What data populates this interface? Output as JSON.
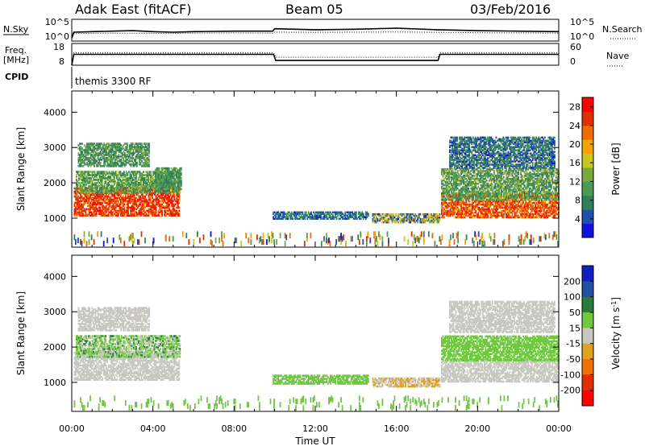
{
  "header": {
    "station": "Adak East (fitACF)",
    "beam": "Beam 05",
    "date": "03/Feb/2016"
  },
  "top_panels": {
    "nsky_label": "N.Sky",
    "nsky_ticks": [
      "10^5",
      "10^0"
    ],
    "nsearch_label": "N.Search",
    "freq_label_1": "Freq.",
    "freq_label_2": "[MHz]",
    "freq_ticks": [
      "18",
      "8"
    ],
    "nave_label": "Nave",
    "nave_ticks": [
      "60",
      "0"
    ],
    "cpid_label": "CPID",
    "cpid_value": "themis 3300 RF"
  },
  "x_axis": {
    "label": "Time UT",
    "ticks": [
      "00:00",
      "04:00",
      "08:00",
      "12:00",
      "16:00",
      "20:00",
      "00:00"
    ]
  },
  "colors": {
    "power_scale": [
      "#1010e0",
      "#1f50b0",
      "#2f7f5f",
      "#4a9a55",
      "#7aa840",
      "#c8c820",
      "#f5a300",
      "#f06a00",
      "#e03000",
      "#ff0000"
    ],
    "velocity_scale": [
      "#1020c0",
      "#2050a0",
      "#2a7a3a",
      "#70c840",
      "#c8c8c0",
      "#e0a020",
      "#f07000",
      "#e03000",
      "#ff0000"
    ]
  },
  "chart_data": [
    {
      "type": "line",
      "name": "nsky-nsearch",
      "x": [
        0,
        0.1,
        1,
        2,
        3,
        4,
        5,
        6,
        8,
        9.9,
        10,
        12,
        14,
        16,
        18,
        20,
        22,
        24
      ],
      "series": [
        {
          "name": "N.Sky",
          "values": [
            0.3,
            0.9,
            0.95,
            1.0,
            1.05,
            0.95,
            0.9,
            0.95,
            1.0,
            1.0,
            1.25,
            1.15,
            1.2,
            1.3,
            1.15,
            1.05,
            1.0,
            0.95
          ]
        },
        {
          "name": "N.Search",
          "values": [
            0.3,
            0.75,
            0.78,
            0.8,
            0.8,
            0.78,
            0.78,
            0.8,
            0.82,
            0.8,
            0.9,
            0.88,
            0.9,
            0.92,
            0.88,
            0.85,
            0.82,
            0.8
          ]
        }
      ],
      "ylim": [
        0,
        2.2
      ]
    },
    {
      "type": "line",
      "name": "freq-nave",
      "x": [
        0,
        0.1,
        9.95,
        10.05,
        18.05,
        18.15,
        24
      ],
      "series": [
        {
          "name": "Freq.",
          "values": [
            8,
            13,
            13,
            10.2,
            10.2,
            13,
            13
          ]
        },
        {
          "name": "Nave",
          "values": [
            0,
            34,
            34,
            22,
            22,
            34,
            34
          ]
        }
      ],
      "ylim": [
        8,
        18
      ]
    },
    {
      "type": "heatmap",
      "name": "power",
      "title": "Power [dB]",
      "xlabel": "Time UT",
      "ylabel": "Slant Range [km]",
      "xlim": [
        0,
        24
      ],
      "ylim": [
        180,
        4600
      ],
      "yticks": [
        1000,
        2000,
        3000,
        4000
      ],
      "colorbar_ticks": [
        4,
        8,
        12,
        16,
        20,
        24,
        28
      ],
      "colorbar_range": [
        0,
        30
      ],
      "regions": [
        {
          "t0": 0.1,
          "t1": 5.3,
          "r0": 1050,
          "r1": 1850,
          "v0": 22,
          "v1": 28
        },
        {
          "t0": 0.2,
          "t1": 5.3,
          "r0": 1700,
          "r1": 2300,
          "v0": 6,
          "v1": 16
        },
        {
          "t0": 0.3,
          "t1": 3.8,
          "r0": 2450,
          "r1": 3100,
          "v0": 6,
          "v1": 14
        },
        {
          "t0": 4.1,
          "t1": 5.4,
          "r0": 1800,
          "r1": 2400,
          "v0": 6,
          "v1": 14
        },
        {
          "t0": 9.9,
          "t1": 14.6,
          "r0": 960,
          "r1": 1170,
          "v0": 2,
          "v1": 11
        },
        {
          "t0": 14.8,
          "t1": 18.1,
          "r0": 860,
          "r1": 1100,
          "v0": 2,
          "v1": 22
        },
        {
          "t0": 18.2,
          "t1": 24,
          "r0": 1000,
          "r1": 1700,
          "v0": 20,
          "v1": 28
        },
        {
          "t0": 18.2,
          "t1": 24,
          "r0": 1500,
          "r1": 2400,
          "v0": 6,
          "v1": 16
        },
        {
          "t0": 18.6,
          "t1": 23.8,
          "r0": 2400,
          "r1": 3300,
          "v0": 2,
          "v1": 12
        },
        {
          "t0": 0.1,
          "t1": 24,
          "r0": 200,
          "r1": 480,
          "v0": 2,
          "v1": 26
        }
      ]
    },
    {
      "type": "heatmap",
      "name": "velocity",
      "title": "Velocity [m s^-1]",
      "xlabel": "Time UT",
      "ylabel": "Slant Range [km]",
      "xlim": [
        0,
        24
      ],
      "ylim": [
        180,
        4600
      ],
      "yticks": [
        1000,
        2000,
        3000,
        4000
      ],
      "colorbar_ticks": [
        200,
        100,
        50,
        15,
        -15,
        -50,
        -100,
        -200
      ],
      "colorbar_range": [
        -250,
        250
      ],
      "regions": [
        {
          "t0": 0.1,
          "t1": 5.3,
          "r0": 1050,
          "r1": 1850,
          "v0": -14,
          "v1": 14
        },
        {
          "t0": 0.2,
          "t1": 5.3,
          "r0": 1700,
          "r1": 2300,
          "v0": -10,
          "v1": 60
        },
        {
          "t0": 0.3,
          "t1": 3.8,
          "r0": 2450,
          "r1": 3100,
          "v0": -14,
          "v1": 14
        },
        {
          "t0": 9.9,
          "t1": 14.6,
          "r0": 940,
          "r1": 1170,
          "v0": 20,
          "v1": 45
        },
        {
          "t0": 14.8,
          "t1": 18.1,
          "r0": 860,
          "r1": 1100,
          "v0": -40,
          "v1": 14
        },
        {
          "t0": 18.2,
          "t1": 24,
          "r0": 1000,
          "r1": 1650,
          "v0": -14,
          "v1": 14
        },
        {
          "t0": 18.2,
          "t1": 24,
          "r0": 1600,
          "r1": 2300,
          "v0": 20,
          "v1": 45
        },
        {
          "t0": 18.6,
          "t1": 23.8,
          "r0": 2400,
          "r1": 3300,
          "v0": -14,
          "v1": 14
        },
        {
          "t0": 0.1,
          "t1": 24,
          "r0": 200,
          "r1": 480,
          "v0": 20,
          "v1": 45
        }
      ]
    }
  ]
}
